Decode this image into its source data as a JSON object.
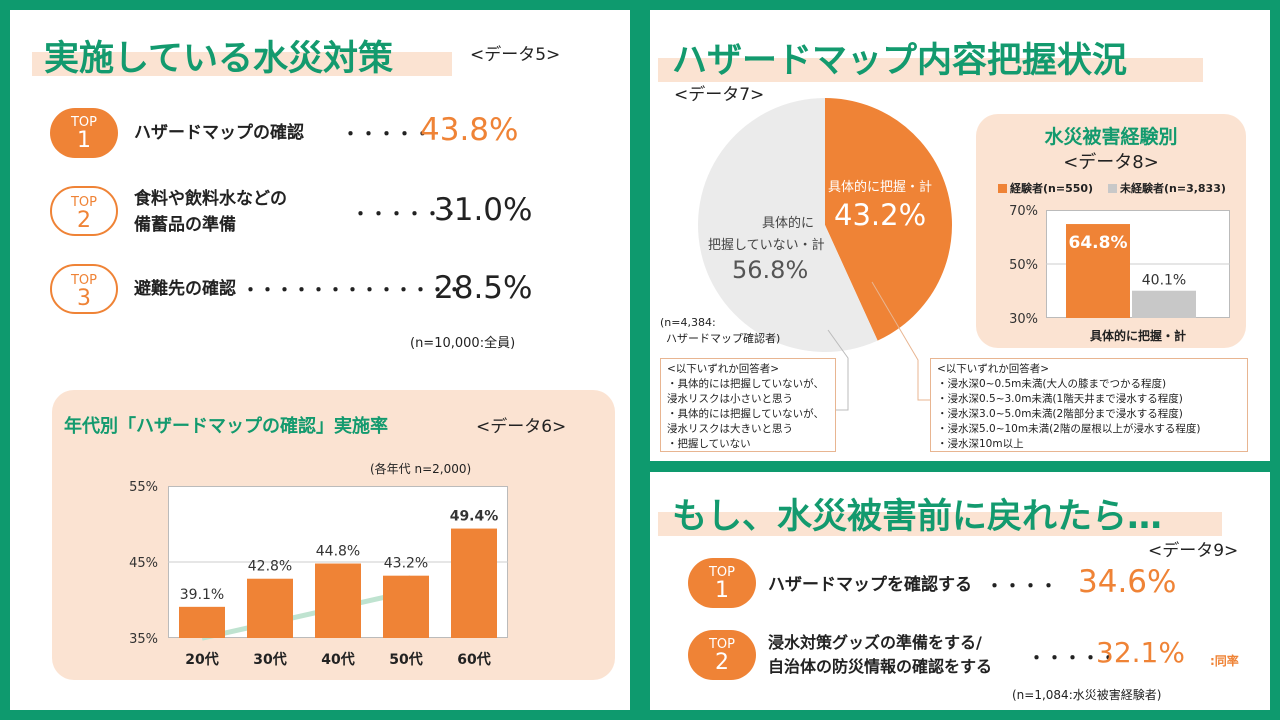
{
  "left_panel": {
    "title": "実施している水災対策",
    "data_tag": "<データ5>",
    "items": [
      {
        "rank_top": "TOP",
        "rank_num": "1",
        "label_lines": [
          "ハザードマップの確認"
        ],
        "dots": "・・・・・",
        "value": "43.8%"
      },
      {
        "rank_top": "TOP",
        "rank_num": "2",
        "label_lines": [
          "食料や飲料水などの",
          "備蓄品の準備"
        ],
        "dots": "・・・・・・",
        "value": "31.0%"
      },
      {
        "rank_top": "TOP",
        "rank_num": "3",
        "label_lines": [
          "避難先の確認"
        ],
        "dots": "・・・・・・・・・・・・・",
        "value": "28.5%"
      }
    ],
    "sample_note": "(n=10,000:全員)"
  },
  "age_chart": {
    "title": "年代別「ハザードマップの確認」実施率",
    "data_tag": "<データ6>",
    "sample_note": "(各年代 n=2,000)",
    "y_ticks": [
      "55%",
      "45%",
      "35%"
    ],
    "value_labels": [
      "39.1%",
      "42.8%",
      "44.8%",
      "43.2%",
      "49.4%"
    ]
  },
  "pie_panel": {
    "title": "ハザードマップ内容把握状況",
    "data_tag": "<データ7>",
    "slice_specific_label": "具体的に把握・計",
    "slice_specific_value": "43.2%",
    "slice_other_label_lines": [
      "具体的に",
      "把握していない・計"
    ],
    "slice_other_value": "56.8%",
    "sample_note_lines": [
      "(n=4,384:",
      "ハザードマップ確認者)"
    ],
    "note_left_lines": [
      "<以下いずれか回答者>",
      "・具体的には把握していないが、",
      "浸水リスクは小さいと思う",
      "・具体的には把握していないが、",
      "浸水リスクは大きいと思う",
      "・把握していない"
    ],
    "note_right_lines": [
      "<以下いずれか回答者>",
      "・浸水深0~0.5m未満(大人の膝までつかる程度)",
      "・浸水深0.5~3.0m未満(1階天井まで浸水する程度)",
      "・浸水深3.0~5.0m未満(2階部分まで浸水する程度)",
      "・浸水深5.0~10m未満(2階の屋根以上が浸水する程度)",
      "・浸水深10m以上"
    ]
  },
  "experience_chart": {
    "title": "水災被害経験別",
    "data_tag": "<データ8>",
    "legend": [
      {
        "label": "経験者(n=550)",
        "color": "#ef8336"
      },
      {
        "label": "未経験者(n=3,833)",
        "color": "#c8c8c8"
      }
    ],
    "y_ticks": [
      "70%",
      "50%",
      "30%"
    ],
    "value_labels": [
      "64.8%",
      "40.1%"
    ],
    "x_label": "具体的に把握・計"
  },
  "br_panel": {
    "title": "もし、水災被害前に戻れたら…",
    "data_tag": "<データ9>",
    "items": [
      {
        "rank_top": "TOP",
        "rank_num": "1",
        "label_lines": [
          "ハザードマップを確認する"
        ],
        "dots": "・・・・",
        "value": "34.6%",
        "suffix": ""
      },
      {
        "rank_top": "TOP",
        "rank_num": "2",
        "label_lines": [
          "浸水対策グッズの準備をする/",
          "自治体の防災情報の確認をする"
        ],
        "dots": "・・・・・",
        "value": "32.1%",
        "suffix": ":同率"
      }
    ],
    "sample_note": "(n=1,084:水災被害経験者)"
  },
  "chart_data": [
    {
      "type": "pie",
      "title": "ハザードマップ内容把握状況",
      "categories": [
        "具体的に把握・計",
        "具体的に把握していない・計"
      ],
      "values": [
        43.2,
        56.8
      ],
      "colors": [
        "#ef8336",
        "#ebebeb"
      ]
    },
    {
      "type": "bar",
      "title": "年代別「ハザードマップの確認」実施率",
      "categories": [
        "20代",
        "30代",
        "40代",
        "50代",
        "60代"
      ],
      "values": [
        39.1,
        42.8,
        44.8,
        43.2,
        49.4
      ],
      "ylim": [
        35,
        55
      ],
      "y_ticks": [
        35,
        45,
        55
      ],
      "color": "#ef8336",
      "grid": true
    },
    {
      "type": "bar",
      "title": "水災被害経験別",
      "categories": [
        "具体的に把握・計"
      ],
      "series": [
        {
          "name": "経験者(n=550)",
          "values": [
            64.8
          ]
        },
        {
          "name": "未経験者(n=3,833)",
          "values": [
            40.1
          ]
        }
      ],
      "ylim": [
        30,
        70
      ],
      "y_ticks": [
        30,
        50,
        70
      ],
      "legend": "top"
    }
  ]
}
